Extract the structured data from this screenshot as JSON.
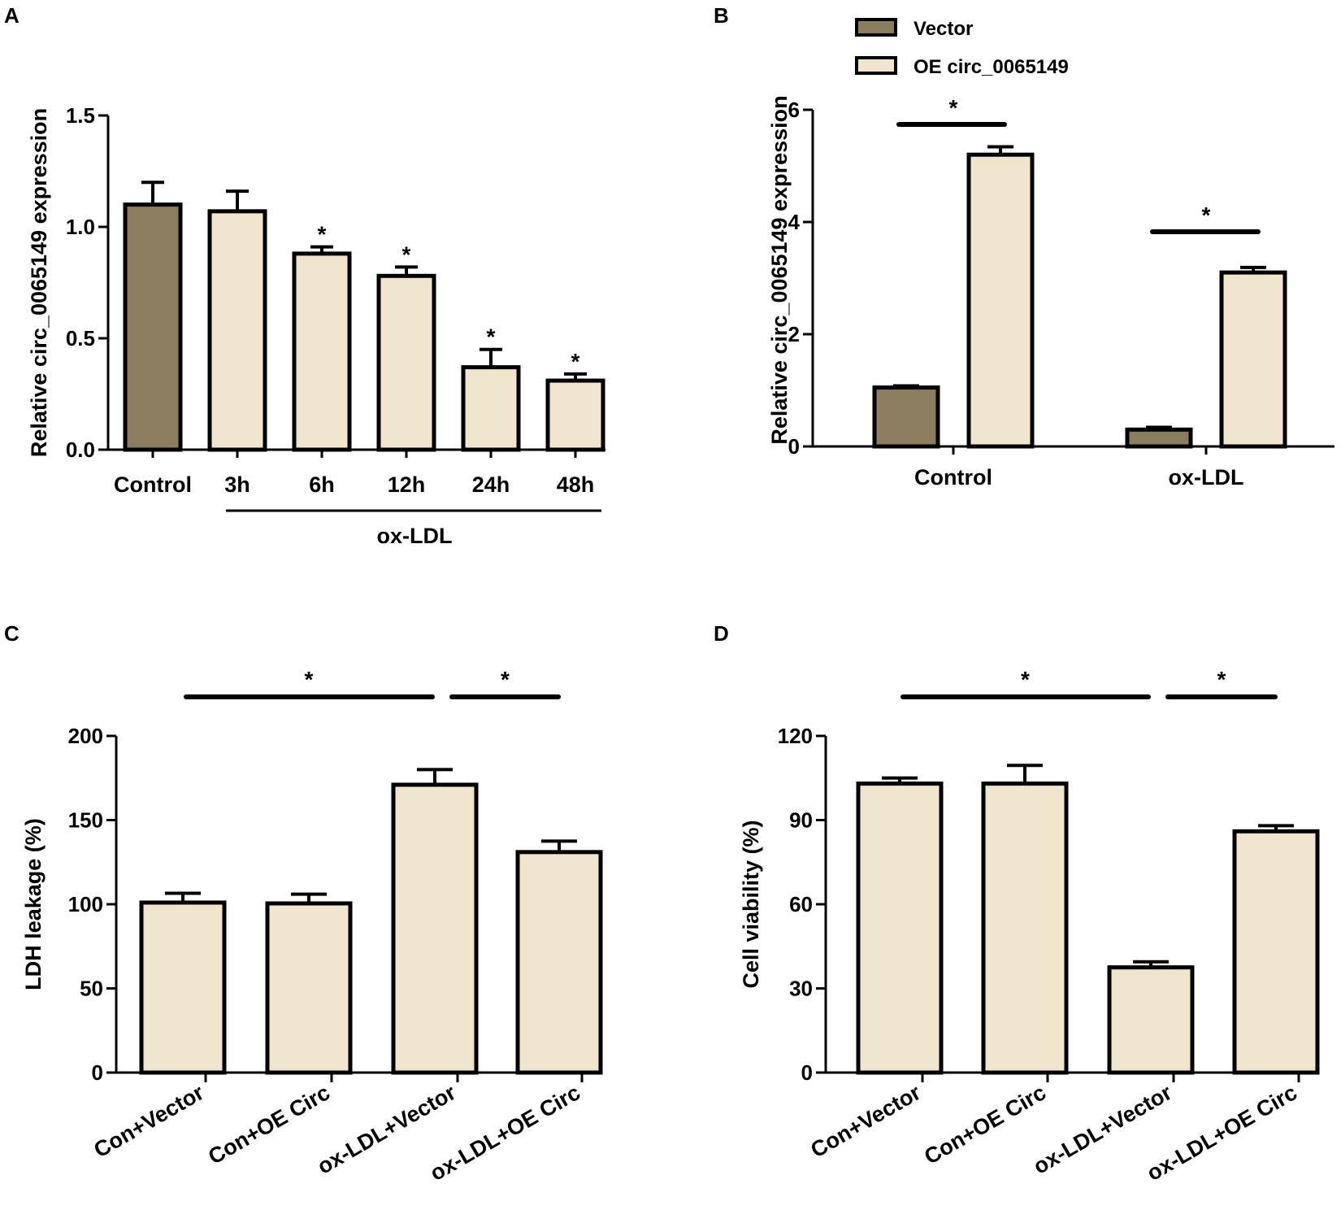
{
  "colors": {
    "vector": "#8b7e5f",
    "oe": "#efe6cd",
    "stroke": "#000000"
  },
  "chart_data": [
    {
      "panel": "A",
      "type": "bar",
      "categories": [
        "Control",
        "3h",
        "6h",
        "12h",
        "24h",
        "48h"
      ],
      "values": [
        1.1,
        1.07,
        0.88,
        0.78,
        0.37,
        0.31
      ],
      "errors": [
        0.1,
        0.09,
        0.03,
        0.04,
        0.08,
        0.03
      ],
      "colors": [
        "vector",
        "oe",
        "oe",
        "oe",
        "oe",
        "oe"
      ],
      "significant": [
        false,
        false,
        true,
        true,
        true,
        true
      ],
      "ylabel": "Relative circ_0065149 expression",
      "ylim": [
        0,
        1.5
      ],
      "yticks": [
        "0.0",
        "0.5",
        "1.0",
        "1.5"
      ],
      "group_label": "ox-LDL",
      "star": "*"
    },
    {
      "panel": "B",
      "type": "bar",
      "categories": [
        "Control",
        "ox-LDL"
      ],
      "series": [
        {
          "name": "Vector",
          "color": "vector",
          "values": [
            1.05,
            0.3
          ],
          "errors": [
            0.03,
            0.04
          ]
        },
        {
          "name": "OE circ_0065149",
          "color": "oe",
          "values": [
            5.2,
            3.1
          ],
          "errors": [
            0.14,
            0.09
          ]
        }
      ],
      "ylabel": "Relative circ_0065149 expression",
      "ylim": [
        0,
        6
      ],
      "yticks": [
        "0",
        "2",
        "4",
        "6"
      ],
      "star": "*",
      "legend_position": "top"
    },
    {
      "panel": "C",
      "type": "bar",
      "categories": [
        "Con+Vector",
        "Con+OE Circ",
        "ox-LDL+Vector",
        "ox-LDL+OE Circ"
      ],
      "values": [
        101,
        100.5,
        171,
        131
      ],
      "errors": [
        5.5,
        5.5,
        9,
        6.5
      ],
      "ylabel": "LDH leakage (%)",
      "ylim": [
        0,
        200
      ],
      "yticks": [
        "0",
        "50",
        "100",
        "150",
        "200"
      ],
      "star": "*"
    },
    {
      "panel": "D",
      "type": "bar",
      "categories": [
        "Con+Vector",
        "Con+OE Circ",
        "ox-LDL+Vector",
        "ox-LDL+OE Circ"
      ],
      "values": [
        103,
        103,
        37.5,
        86
      ],
      "errors": [
        2,
        6.5,
        2,
        2
      ],
      "ylabel": "Cell viability (%)",
      "ylim": [
        0,
        120
      ],
      "yticks": [
        "0",
        "30",
        "60",
        "90",
        "120"
      ],
      "star": "*"
    }
  ]
}
